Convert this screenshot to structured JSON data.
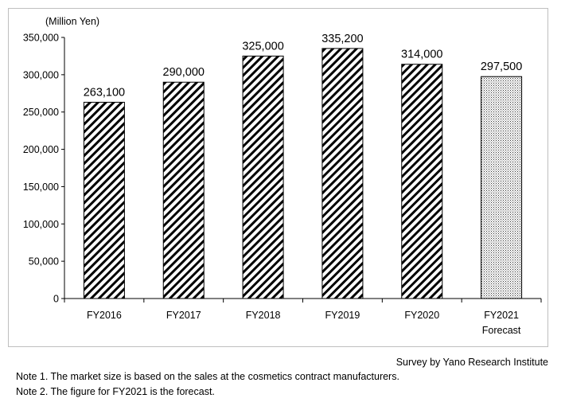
{
  "chart_data": {
    "type": "bar",
    "unit_label": "(Million Yen)",
    "categories": [
      "FY2016",
      "FY2017",
      "FY2018",
      "FY2019",
      "FY2020",
      "FY2021"
    ],
    "category_sublabels": [
      "",
      "",
      "",
      "",
      "",
      "Forecast"
    ],
    "values": [
      263100,
      290000,
      325000,
      335200,
      314000,
      297500
    ],
    "value_labels": [
      "263,100",
      "290,000",
      "325,000",
      "335,200",
      "314,000",
      "297,500"
    ],
    "bar_patterns": [
      "hatch",
      "hatch",
      "hatch",
      "hatch",
      "hatch",
      "dots"
    ],
    "ylim": [
      0,
      350000
    ],
    "yticks": [
      0,
      50000,
      100000,
      150000,
      200000,
      250000,
      300000,
      350000
    ],
    "ytick_labels": [
      "0",
      "50,000",
      "100,000",
      "150,000",
      "200,000",
      "250,000",
      "300,000",
      "350,000"
    ],
    "grid": false
  },
  "footer": {
    "source": "Survey by Yano Research Institute",
    "note1": "Note 1.  The market size is based on the sales at the cosmetics contract manufacturers.",
    "note2": "Note 2.  The figure for FY2021 is the forecast."
  }
}
